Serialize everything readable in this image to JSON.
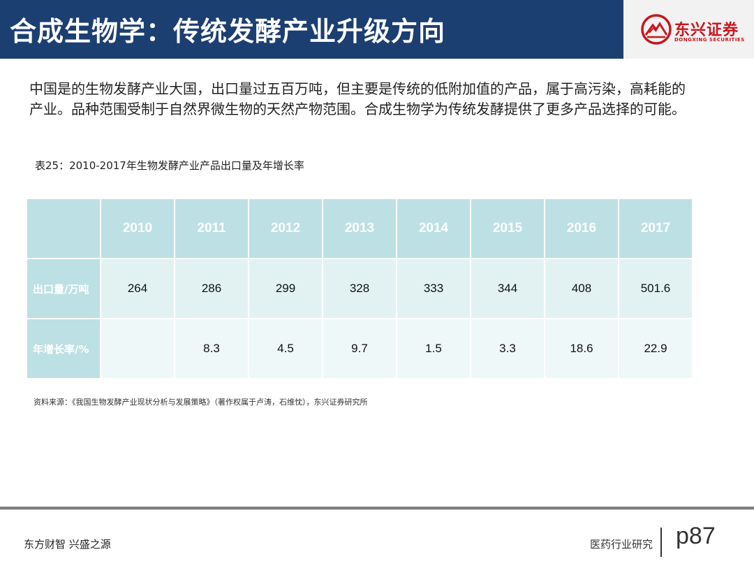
{
  "header": {
    "title": "合成生物学：传统发酵产业升级方向",
    "logo_cn": "东兴证券",
    "logo_en": "DONGXING SECURITIES"
  },
  "intro_text": "中国是的生物发酵产业大国，出口量过五百万吨，但主要是传统的低附加值的产品，属于高污染，高耗能的产业。品种范围受制于自然界微生物的天然产物范围。合成生物学为传统发酵提供了更多产品选择的可能。",
  "table": {
    "caption": "表25：2010-2017年生物发酵产业产品出口量及年增长率",
    "years": [
      "2010",
      "2011",
      "2012",
      "2013",
      "2014",
      "2015",
      "2016",
      "2017"
    ],
    "rows": [
      {
        "label": "出口量/万吨",
        "values": [
          "264",
          "286",
          "299",
          "328",
          "333",
          "344",
          "408",
          "501.6"
        ]
      },
      {
        "label": "年增长率/%",
        "values": [
          "",
          "8.3",
          "4.5",
          "9.7",
          "1.5",
          "3.3",
          "18.6",
          "22.9"
        ]
      }
    ]
  },
  "source": "资料来源：《我国生物发酵产业现状分析与发展策略》（著作权属于卢涛，石维忱），东兴证券研究所",
  "footer": {
    "slogan": "东方财智 兴盛之源",
    "section": "医药行业研究",
    "page": "p87"
  },
  "colors": {
    "title_bar": "#1c3f72",
    "brand_red": "#c8161d",
    "table_header": "#bde0e4"
  }
}
